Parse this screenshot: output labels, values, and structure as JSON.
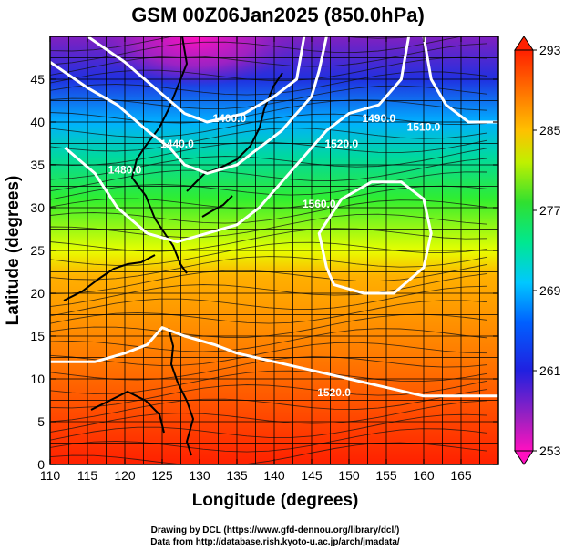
{
  "figure": {
    "title": "GSM 00Z06Jan2025 (850.0hPa)",
    "xlabel": "Longitude (degrees)",
    "ylabel": "Latitude  (degrees)",
    "credits": [
      "Drawing by DCL (https://www.gfd-dennou.org/library/dcl/)",
      "Data from http://database.rish.kyoto-u.ac.jp/arch/jmadata/"
    ]
  },
  "chart_data": {
    "type": "heatmap",
    "xlim": [
      110,
      170
    ],
    "ylim": [
      0,
      50
    ],
    "x_ticks": [
      110,
      115,
      120,
      125,
      130,
      135,
      140,
      145,
      150,
      155,
      160,
      165
    ],
    "y_ticks": [
      0,
      5,
      10,
      15,
      20,
      25,
      30,
      35,
      40,
      45
    ],
    "grid": true,
    "colorbar": {
      "range": [
        253,
        293
      ],
      "ticks": [
        253,
        261,
        269,
        277,
        285,
        293
      ],
      "placement": "right"
    },
    "contour_labels": [
      {
        "text": "1400.0",
        "lon": 134,
        "lat": 40
      },
      {
        "text": "1440.0",
        "lon": 127,
        "lat": 37
      },
      {
        "text": "1480.0",
        "lon": 120,
        "lat": 34
      },
      {
        "text": "1490.0",
        "lon": 154,
        "lat": 40
      },
      {
        "text": "1510.0",
        "lon": 160,
        "lat": 39
      },
      {
        "text": "1520.0",
        "lon": 149,
        "lat": 37
      },
      {
        "text": "1560.0",
        "lon": 146,
        "lat": 30
      },
      {
        "text": "1520.0",
        "lon": 148,
        "lat": 8
      }
    ],
    "contours": [
      {
        "points": [
          [
            115,
            50
          ],
          [
            120,
            47
          ],
          [
            124,
            44
          ],
          [
            128,
            41
          ],
          [
            131,
            40
          ],
          [
            136,
            41
          ],
          [
            140,
            43
          ],
          [
            143,
            45
          ],
          [
            144,
            50
          ]
        ]
      },
      {
        "points": [
          [
            110,
            47
          ],
          [
            115,
            44
          ],
          [
            119,
            42
          ],
          [
            123,
            39
          ],
          [
            126,
            37
          ],
          [
            128,
            35
          ],
          [
            131,
            34
          ],
          [
            135,
            35
          ],
          [
            138,
            37
          ],
          [
            141,
            39
          ],
          [
            143,
            41
          ],
          [
            145,
            43
          ],
          [
            146,
            46
          ],
          [
            147,
            50
          ]
        ]
      },
      {
        "points": [
          [
            112,
            37
          ],
          [
            116,
            34
          ],
          [
            119,
            30
          ],
          [
            123,
            27
          ],
          [
            127,
            26
          ],
          [
            131,
            27
          ],
          [
            135,
            28
          ],
          [
            138,
            30
          ],
          [
            141,
            33
          ],
          [
            144,
            36
          ],
          [
            147,
            39
          ],
          [
            150,
            41
          ],
          [
            154,
            42
          ],
          [
            157,
            45
          ],
          [
            158,
            50
          ]
        ]
      },
      {
        "points": [
          [
            147,
            23
          ],
          [
            146,
            27
          ],
          [
            149,
            31
          ],
          [
            153,
            33
          ],
          [
            157,
            33
          ],
          [
            160,
            31
          ],
          [
            161,
            27
          ],
          [
            160,
            23
          ],
          [
            156,
            20
          ],
          [
            152,
            20
          ],
          [
            148,
            21
          ],
          [
            147,
            23
          ]
        ]
      },
      {
        "points": [
          [
            110,
            12
          ],
          [
            116,
            12
          ],
          [
            120,
            13
          ],
          [
            123,
            14
          ],
          [
            125,
            16
          ],
          [
            128,
            15
          ],
          [
            132,
            14
          ],
          [
            135,
            13
          ],
          [
            140,
            12
          ],
          [
            145,
            11
          ],
          [
            150,
            10
          ],
          [
            155,
            9
          ],
          [
            160,
            8
          ],
          [
            165,
            8
          ],
          [
            170,
            8
          ]
        ]
      },
      {
        "points": [
          [
            160,
            50
          ],
          [
            161,
            45
          ],
          [
            163,
            42
          ],
          [
            166,
            40
          ],
          [
            170,
            40
          ]
        ]
      }
    ]
  }
}
